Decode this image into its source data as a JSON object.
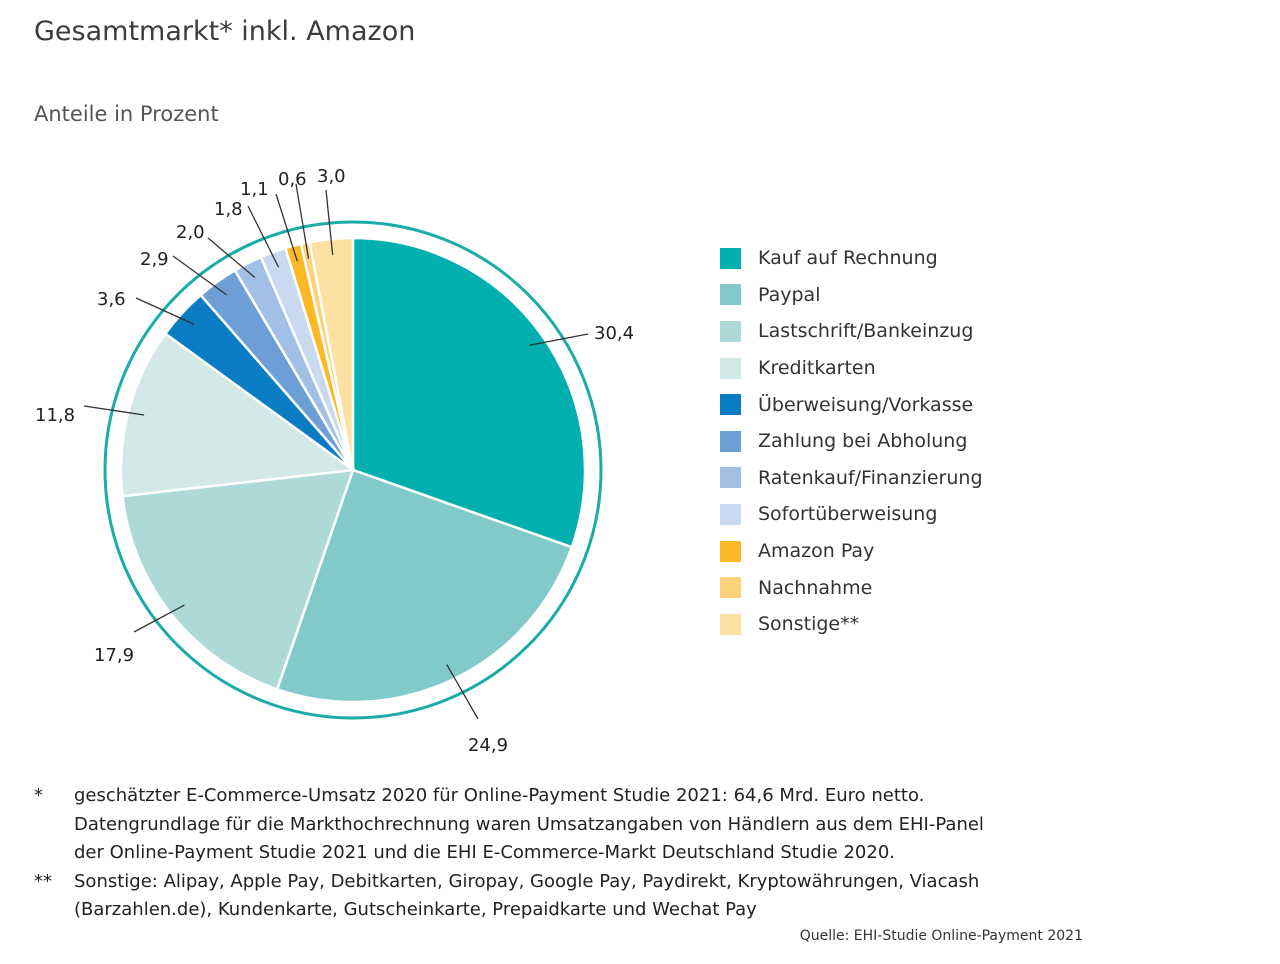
{
  "title": "Gesamtmarkt* inkl. Amazon",
  "subtitle": "Anteile in Prozent",
  "chart_data": {
    "type": "pie",
    "title": "Gesamtmarkt* inkl. Amazon",
    "subtitle": "Anteile in Prozent",
    "legend_position": "right",
    "slices": [
      {
        "label": "Kauf auf Rechnung",
        "value": 30.4,
        "value_label": "30,4",
        "color": "#00AFAE"
      },
      {
        "label": "Paypal",
        "value": 24.9,
        "value_label": "24,9",
        "color": "#82CACA"
      },
      {
        "label": "Lastschrift/Bankeinzug",
        "value": 17.9,
        "value_label": "17,9",
        "color": "#ADDAD8"
      },
      {
        "label": "Kreditkarten",
        "value": 11.8,
        "value_label": "11,8",
        "color": "#D2E9E7"
      },
      {
        "label": "Überweisung/Vorkasse",
        "value": 3.6,
        "value_label": "3,6",
        "color": "#0A7CC4"
      },
      {
        "label": "Zahlung bei Abholung",
        "value": 2.9,
        "value_label": "2,9",
        "color": "#6D9FD6"
      },
      {
        "label": "Ratenkauf/Finanzierung",
        "value": 2.0,
        "value_label": "2,0",
        "color": "#A2C0E6"
      },
      {
        "label": "Sofortüberweisung",
        "value": 1.8,
        "value_label": "1,8",
        "color": "#C9D9F0"
      },
      {
        "label": "Amazon Pay",
        "value": 1.1,
        "value_label": "1,1",
        "color": "#FBBA25"
      },
      {
        "label": "Nachnahme",
        "value": 0.6,
        "value_label": "0,6",
        "color": "#FCD279"
      },
      {
        "label": "Sonstige**",
        "value": 3.0,
        "value_label": "3,0",
        "color": "#FDE1A3"
      }
    ],
    "ring_color": "#1AACA8"
  },
  "footnotes": [
    {
      "mark": "*",
      "lines": [
        "geschätzter E-Commerce-Umsatz 2020 für Online-Payment Studie 2021: 64,6 Mrd. Euro netto.",
        "Datengrundlage für die Markthochrechnung waren Umsatzangaben von Händlern aus dem EHI-Panel",
        "der Online-Payment Studie 2021 und die EHI E-Commerce-Markt Deutschland Studie 2020."
      ]
    },
    {
      "mark": "**",
      "lines": [
        "Sonstige: Alipay, Apple Pay, Debitkarten, Giropay, Google Pay, Paydirekt, Kryptowährungen, Viacash",
        "(Barzahlen.de), Kundenkarte, Gutscheinkarte, Prepaidkarte und Wechat Pay"
      ]
    }
  ],
  "source": "Quelle: EHI-Studie Online-Payment 2021"
}
